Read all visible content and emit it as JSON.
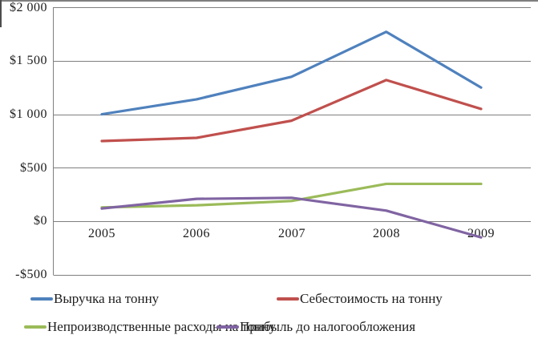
{
  "chart_data": {
    "type": "line",
    "title": "",
    "xlabel": "",
    "ylabel": "",
    "x_labels": [
      "2005",
      "2006",
      "2007",
      "2008",
      "2009"
    ],
    "y_ticks": [
      2000,
      1500,
      1000,
      500,
      0,
      -500
    ],
    "y_tick_labels": [
      "$2 000",
      "$1 500",
      "$1 000",
      "$500",
      "$0",
      "-$500"
    ],
    "ylim": [
      -500,
      2000
    ],
    "grid": true,
    "legend_position": "bottom",
    "gridline_color": "#7f7f7f",
    "axis_color": "#7f7f7f",
    "series": [
      {
        "name": "Выручка на тонну",
        "color": "#4F81BD",
        "values": [
          1000,
          1140,
          1350,
          1770,
          1250
        ]
      },
      {
        "name": "Себестоимость на тонну",
        "color": "#C0504D",
        "values": [
          750,
          780,
          940,
          1320,
          1050
        ]
      },
      {
        "name": "Непроизводственные расходы на тонну",
        "color": "#9BBB59",
        "values": [
          130,
          150,
          190,
          350,
          350
        ]
      },
      {
        "name": "Прибыль до налогообложения",
        "color": "#8064A2",
        "values": [
          120,
          210,
          220,
          100,
          -150
        ]
      }
    ]
  }
}
